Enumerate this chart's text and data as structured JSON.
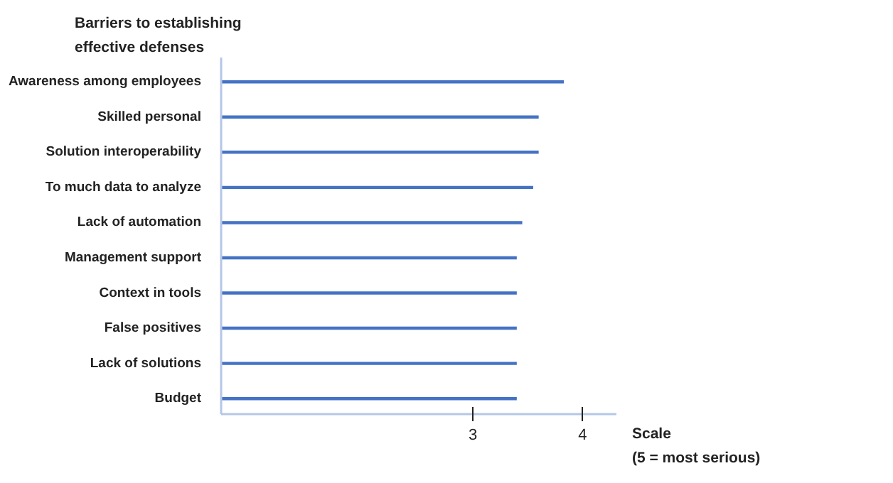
{
  "chart_data": {
    "type": "bar",
    "orientation": "horizontal",
    "ylabel": "Barriers to establishing\neffective defenses",
    "xlabel": "Scale\n(5 = most serious)",
    "categories": [
      "Awareness among employees",
      "Skilled personal",
      "Solution interoperability",
      "To much data to analyze",
      "Lack of automation",
      "Management support",
      "Context in tools",
      "False positives",
      "Lack of solutions",
      "Budget"
    ],
    "values": [
      3.83,
      3.6,
      3.6,
      3.55,
      3.45,
      3.4,
      3.4,
      3.4,
      3.4,
      3.4
    ],
    "color": "#4472c4",
    "xlim": [
      0.7,
      4.31
    ],
    "xticks": [
      3,
      4
    ],
    "grid": false
  }
}
